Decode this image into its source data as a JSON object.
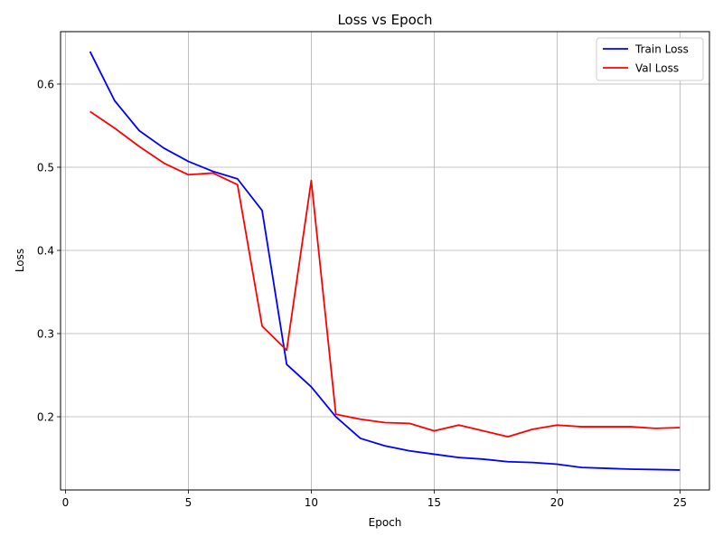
{
  "chart_data": {
    "type": "line",
    "title": "Loss vs Epoch",
    "xlabel": "Epoch",
    "ylabel": "Loss",
    "xlim": [
      -0.2,
      26.2
    ],
    "ylim": [
      0.112,
      0.663
    ],
    "xticks": [
      0,
      5,
      10,
      15,
      20,
      25
    ],
    "yticks": [
      0.2,
      0.3,
      0.4,
      0.5,
      0.6
    ],
    "xtick_labels": [
      "0",
      "5",
      "10",
      "15",
      "20",
      "25"
    ],
    "ytick_labels": [
      "0.2",
      "0.3",
      "0.4",
      "0.5",
      "0.6"
    ],
    "grid": true,
    "legend_position": "top-right",
    "x": [
      1,
      2,
      3,
      4,
      5,
      6,
      7,
      8,
      9,
      10,
      11,
      12,
      13,
      14,
      15,
      16,
      17,
      18,
      19,
      20,
      21,
      22,
      23,
      24,
      25
    ],
    "series": [
      {
        "name": "Train Loss",
        "color": "#0000ff",
        "values": [
          0.639,
          0.58,
          0.544,
          0.523,
          0.507,
          0.495,
          0.486,
          0.448,
          0.263,
          0.236,
          0.2,
          0.174,
          0.165,
          0.159,
          0.155,
          0.151,
          0.149,
          0.146,
          0.145,
          0.143,
          0.139,
          0.138,
          0.137,
          0.1365,
          0.136
        ]
      },
      {
        "name": "Val Loss",
        "color": "#ff0000",
        "values": [
          0.567,
          0.547,
          0.525,
          0.505,
          0.491,
          0.493,
          0.479,
          0.309,
          0.28,
          0.484,
          0.203,
          0.197,
          0.193,
          0.192,
          0.183,
          0.19,
          0.183,
          0.176,
          0.185,
          0.19,
          0.188,
          0.188,
          0.188,
          0.186,
          0.187
        ]
      }
    ]
  }
}
